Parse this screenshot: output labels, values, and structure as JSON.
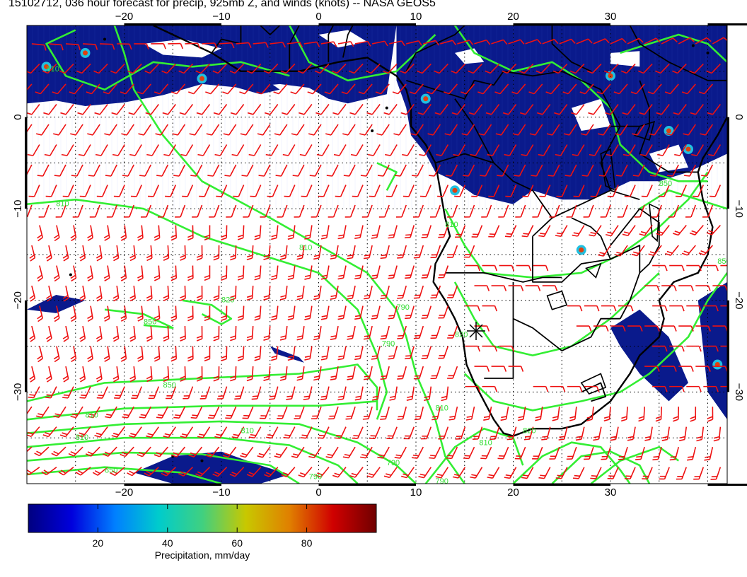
{
  "title": "15102712, 036 hour forecast for precip, 925mb Z, and winds (knots) -- NASA GEOS5",
  "map": {
    "lon_range": [
      -30,
      42
    ],
    "lat_range": [
      -40,
      10
    ],
    "x_ticks": [
      -20,
      -10,
      0,
      10,
      20,
      30
    ],
    "y_ticks": [
      0,
      -10,
      -20,
      -30
    ],
    "contour_labels": [
      "810",
      "810",
      "820",
      "850",
      "850",
      "810",
      "790",
      "790",
      "810",
      "810",
      "810",
      "790",
      "820",
      "790",
      "850",
      "810",
      "790",
      "810",
      "820",
      "810",
      "850",
      "850"
    ],
    "colors": {
      "precip": "#0a1a8c",
      "contour": "#33ee33",
      "wind": "#ee1111",
      "coast": "#000000",
      "grid": "#000000"
    }
  },
  "colorbar": {
    "label": "Precipitation, mm/day",
    "ticks": [
      "20",
      "40",
      "60",
      "80"
    ],
    "tick_values": [
      20,
      40,
      60,
      80
    ],
    "range": [
      0,
      100
    ],
    "stops": [
      "#000080",
      "#0000dd",
      "#0080ff",
      "#00cccc",
      "#40d080",
      "#c8c800",
      "#e08000",
      "#d00000",
      "#700000"
    ]
  }
}
